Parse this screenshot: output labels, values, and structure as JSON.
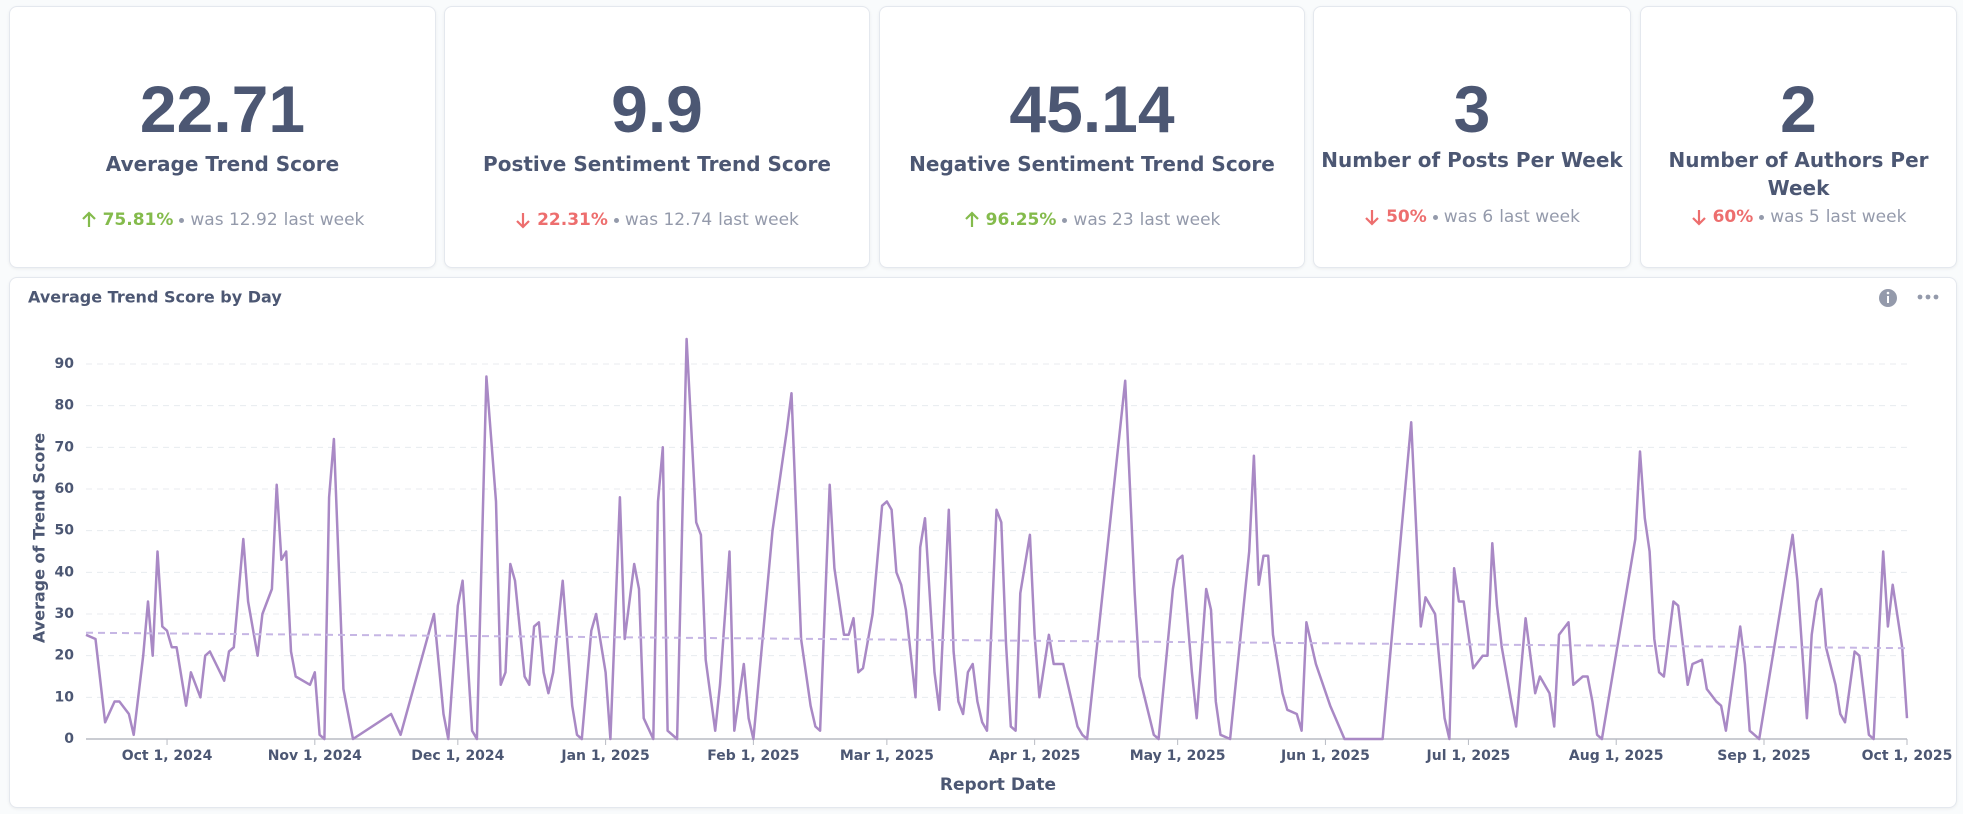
{
  "kpis": [
    {
      "value": 22.71,
      "title": "Average Trend Score",
      "direction": "up",
      "change": "75.81%",
      "previous": "was 12.92",
      "period": "last week"
    },
    {
      "value": 9.9,
      "title": "Postive Sentiment Trend Score",
      "direction": "down",
      "change": "22.31%",
      "previous": "was 12.74",
      "period": "last week"
    },
    {
      "value": 45.14,
      "title": "Negative Sentiment Trend Score",
      "direction": "up",
      "change": "96.25%",
      "previous": "was 23",
      "period": "last week"
    },
    {
      "value": 3,
      "title": "Number of Posts Per Week",
      "direction": "down",
      "change": "50%",
      "previous": "was 6",
      "period": "last week"
    },
    {
      "value": 2,
      "title": "Number of Authors Per Week",
      "direction": "down",
      "change": "60%",
      "previous": "was 5",
      "period": "last week"
    }
  ],
  "chart_data": {
    "type": "line",
    "title": "Average Trend Score by Day",
    "x_label": "Report Date",
    "y_label": "Average of Trend Score",
    "color": "#a989c5",
    "trend_color": "#c6b6e4",
    "grid": true,
    "xlim": [
      "2024-09-14",
      "2025-10-01"
    ],
    "ylim": [
      0,
      96
    ],
    "yticks": [
      0,
      10,
      20,
      30,
      40,
      50,
      60,
      70,
      80,
      90
    ],
    "xticks": [
      {
        "value": "2024-10-01",
        "label": "Oct 1, 2024"
      },
      {
        "value": "2024-11-01",
        "label": "Nov 1, 2024"
      },
      {
        "value": "2024-12-01",
        "label": "Dec 1, 2024"
      },
      {
        "value": "2025-01-01",
        "label": "Jan 1, 2025"
      },
      {
        "value": "2025-02-01",
        "label": "Feb 1, 2025"
      },
      {
        "value": "2025-03-01",
        "label": "Mar 1, 2025"
      },
      {
        "value": "2025-04-01",
        "label": "Apr 1, 2025"
      },
      {
        "value": "2025-05-01",
        "label": "May 1, 2025"
      },
      {
        "value": "2025-06-01",
        "label": "Jun 1, 2025"
      },
      {
        "value": "2025-07-01",
        "label": "Jul 1, 2025"
      },
      {
        "value": "2025-08-01",
        "label": "Aug 1, 2025"
      },
      {
        "value": "2025-09-01",
        "label": "Sep 1, 2025"
      },
      {
        "value": "2025-10-01",
        "label": "Oct 1, 2025"
      }
    ],
    "trend": [
      25.5,
      21.8
    ],
    "x": [
      "2024-09-14",
      "2024-09-16",
      "2024-09-18",
      "2024-09-20",
      "2024-09-21",
      "2024-09-23",
      "2024-09-24",
      "2024-09-26",
      "2024-09-27",
      "2024-09-28",
      "2024-09-29",
      "2024-09-30",
      "2024-10-01",
      "2024-10-02",
      "2024-10-03",
      "2024-10-05",
      "2024-10-06",
      "2024-10-08",
      "2024-10-09",
      "2024-10-10",
      "2024-10-13",
      "2024-10-14",
      "2024-10-15",
      "2024-10-17",
      "2024-10-18",
      "2024-10-20",
      "2024-10-21",
      "2024-10-23",
      "2024-10-24",
      "2024-10-25",
      "2024-10-26",
      "2024-10-27",
      "2024-10-28",
      "2024-10-31",
      "2024-11-01",
      "2024-11-02",
      "2024-11-03",
      "2024-11-04",
      "2024-11-05",
      "2024-11-06",
      "2024-11-07",
      "2024-11-09",
      "2024-11-17",
      "2024-11-19",
      "2024-11-26",
      "2024-11-28",
      "2024-11-29",
      "2024-12-01",
      "2024-12-02",
      "2024-12-03",
      "2024-12-04",
      "2024-12-05",
      "2024-12-07",
      "2024-12-09",
      "2024-12-10",
      "2024-12-11",
      "2024-12-12",
      "2024-12-13",
      "2024-12-15",
      "2024-12-16",
      "2024-12-17",
      "2024-12-18",
      "2024-12-19",
      "2024-12-20",
      "2024-12-21",
      "2024-12-22",
      "2024-12-23",
      "2024-12-25",
      "2024-12-26",
      "2024-12-27",
      "2024-12-29",
      "2024-12-30",
      "2025-01-01",
      "2025-01-02",
      "2025-01-04",
      "2025-01-05",
      "2025-01-07",
      "2025-01-08",
      "2025-01-09",
      "2025-01-11",
      "2025-01-12",
      "2025-01-13",
      "2025-01-14",
      "2025-01-16",
      "2025-01-18",
      "2025-01-20",
      "2025-01-21",
      "2025-01-22",
      "2025-01-24",
      "2025-01-25",
      "2025-01-27",
      "2025-01-28",
      "2025-01-30",
      "2025-01-31",
      "2025-02-01",
      "2025-02-05",
      "2025-02-08",
      "2025-02-09",
      "2025-02-11",
      "2025-02-13",
      "2025-02-14",
      "2025-02-15",
      "2025-02-17",
      "2025-02-18",
      "2025-02-20",
      "2025-02-21",
      "2025-02-22",
      "2025-02-23",
      "2025-02-24",
      "2025-02-26",
      "2025-02-28",
      "2025-03-01",
      "2025-03-02",
      "2025-03-03",
      "2025-03-04",
      "2025-03-05",
      "2025-03-07",
      "2025-03-08",
      "2025-03-09",
      "2025-03-11",
      "2025-03-12",
      "2025-03-14",
      "2025-03-15",
      "2025-03-16",
      "2025-03-17",
      "2025-03-18",
      "2025-03-19",
      "2025-03-20",
      "2025-03-21",
      "2025-03-22",
      "2025-03-24",
      "2025-03-25",
      "2025-03-26",
      "2025-03-27",
      "2025-03-28",
      "2025-03-29",
      "2025-03-31",
      "2025-04-01",
      "2025-04-02",
      "2025-04-04",
      "2025-04-05",
      "2025-04-07",
      "2025-04-09",
      "2025-04-10",
      "2025-04-11",
      "2025-04-12",
      "2025-04-20",
      "2025-04-22",
      "2025-04-23",
      "2025-04-26",
      "2025-04-27",
      "2025-04-30",
      "2025-05-01",
      "2025-05-02",
      "2025-05-04",
      "2025-05-05",
      "2025-05-07",
      "2025-05-08",
      "2025-05-09",
      "2025-05-10",
      "2025-05-12",
      "2025-05-16",
      "2025-05-17",
      "2025-05-18",
      "2025-05-19",
      "2025-05-20",
      "2025-05-21",
      "2025-05-23",
      "2025-05-24",
      "2025-05-26",
      "2025-05-27",
      "2025-05-28",
      "2025-05-30",
      "2025-06-02",
      "2025-06-05",
      "2025-06-13",
      "2025-06-19",
      "2025-06-21",
      "2025-06-22",
      "2025-06-24",
      "2025-06-26",
      "2025-06-27",
      "2025-06-28",
      "2025-06-29",
      "2025-06-30",
      "2025-07-02",
      "2025-07-04",
      "2025-07-05",
      "2025-07-06",
      "2025-07-07",
      "2025-07-08",
      "2025-07-10",
      "2025-07-11",
      "2025-07-13",
      "2025-07-15",
      "2025-07-16",
      "2025-07-18",
      "2025-07-19",
      "2025-07-20",
      "2025-07-22",
      "2025-07-23",
      "2025-07-25",
      "2025-07-26",
      "2025-07-27",
      "2025-07-28",
      "2025-07-29",
      "2025-08-05",
      "2025-08-06",
      "2025-08-07",
      "2025-08-08",
      "2025-08-09",
      "2025-08-10",
      "2025-08-11",
      "2025-08-13",
      "2025-08-14",
      "2025-08-16",
      "2025-08-17",
      "2025-08-19",
      "2025-08-20",
      "2025-08-22",
      "2025-08-23",
      "2025-08-24",
      "2025-08-27",
      "2025-08-28",
      "2025-08-29",
      "2025-08-31",
      "2025-09-07",
      "2025-09-08",
      "2025-09-10",
      "2025-09-11",
      "2025-09-12",
      "2025-09-13",
      "2025-09-14",
      "2025-09-16",
      "2025-09-17",
      "2025-09-18",
      "2025-09-20",
      "2025-09-21",
      "2025-09-23",
      "2025-09-24",
      "2025-09-26",
      "2025-09-27",
      "2025-09-28",
      "2025-09-30",
      "2025-10-01"
    ],
    "values": [
      25,
      24,
      4,
      9,
      9,
      6,
      1,
      20,
      33,
      20,
      45,
      27,
      26,
      22,
      22,
      8,
      16,
      10,
      20,
      21,
      14,
      21,
      22,
      48,
      33,
      20,
      30,
      36,
      61,
      43,
      45,
      21,
      15,
      13,
      16,
      1,
      0,
      58,
      72,
      42,
      12,
      0,
      6,
      1,
      30,
      6,
      0,
      32,
      38,
      20,
      2,
      0,
      87,
      57,
      13,
      16,
      42,
      38,
      15,
      13,
      27,
      28,
      16,
      11,
      16,
      27,
      38,
      8,
      1,
      0,
      26,
      30,
      16,
      0,
      58,
      24,
      42,
      36,
      5,
      0,
      57,
      70,
      2,
      0,
      96,
      52,
      49,
      19,
      2,
      13,
      45,
      2,
      18,
      5,
      0,
      50,
      74,
      83,
      24,
      8,
      3,
      2,
      61,
      41,
      25,
      25,
      29,
      16,
      17,
      30,
      56,
      57,
      55,
      40,
      37,
      31,
      10,
      46,
      53,
      16,
      7,
      55,
      21,
      9,
      6,
      16,
      18,
      9,
      4,
      2,
      55,
      52,
      23,
      3,
      2,
      35,
      49,
      25,
      10,
      25,
      18,
      18,
      8,
      3,
      1,
      0,
      86,
      35,
      15,
      1,
      0,
      36,
      43,
      44,
      16,
      5,
      36,
      31,
      9,
      1,
      0,
      45,
      68,
      37,
      44,
      44,
      25,
      11,
      7,
      6,
      2,
      28,
      18,
      8,
      0,
      0,
      76,
      27,
      34,
      30,
      5,
      0,
      41,
      33,
      33,
      17,
      20,
      20,
      47,
      32,
      22,
      9,
      3,
      29,
      11,
      15,
      11,
      3,
      25,
      28,
      13,
      15,
      15,
      9,
      1,
      0,
      48,
      69,
      53,
      45,
      24,
      16,
      15,
      33,
      32,
      13,
      18,
      19,
      12,
      9,
      8,
      2,
      27,
      18,
      2,
      0,
      49,
      38,
      5,
      25,
      33,
      36,
      22,
      13,
      6,
      4,
      21,
      20,
      1,
      0,
      45,
      27,
      37,
      22,
      5
    ]
  }
}
